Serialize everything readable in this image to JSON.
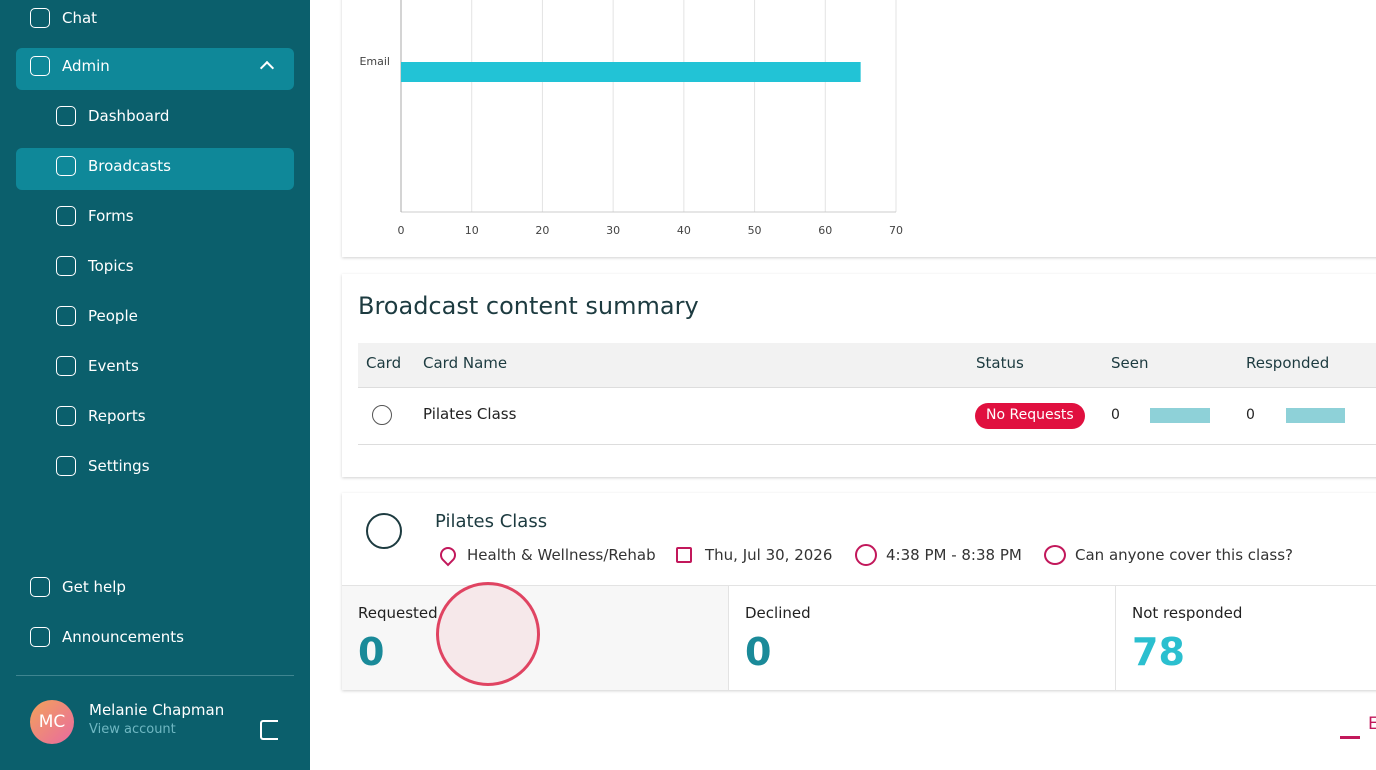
{
  "sidebar": {
    "items": [
      "Chat",
      "Admin",
      "Dashboard",
      "Broadcasts",
      "Forms",
      "Topics",
      "People",
      "Events",
      "Reports",
      "Settings"
    ],
    "footer_items": [
      "Get help",
      "Announcements"
    ],
    "user": {
      "initials": "MC",
      "name": "Melanie Chapman",
      "link": "View account"
    }
  },
  "chart_data": {
    "type": "bar",
    "orientation": "horizontal",
    "categories": [
      "Email"
    ],
    "values": [
      65
    ],
    "color": "#22c3d6",
    "xlim": [
      0,
      70
    ],
    "xticks": [
      0,
      10,
      20,
      30,
      40,
      50,
      60,
      70
    ],
    "grid": true
  },
  "summary": {
    "title": "Broadcast content summary",
    "columns": [
      "Card",
      "Card Name",
      "Status",
      "Seen",
      "Responded"
    ],
    "rows": [
      {
        "name": "Pilates Class",
        "status": "No Requests",
        "seen": 0,
        "responded": 0
      }
    ]
  },
  "event": {
    "title": "Pilates Class",
    "location": "Health & Wellness/Rehab",
    "date": "Thu, Jul 30, 2026",
    "time": "4:38 PM - 8:38 PM",
    "note": "Can anyone cover this class?",
    "stats": [
      {
        "label": "Requested",
        "value": 0
      },
      {
        "label": "Declined",
        "value": 0
      },
      {
        "label": "Not responded",
        "value": 78
      }
    ]
  },
  "export": "E"
}
